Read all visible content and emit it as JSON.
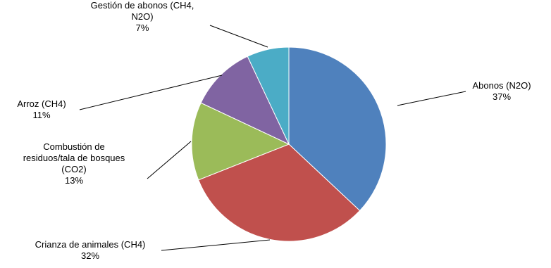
{
  "chart_data": {
    "type": "pie",
    "title": "",
    "slices": [
      {
        "label": "Abonos (N2O)",
        "label_lines": [
          "Abonos (N2O)"
        ],
        "value": 37,
        "value_label": "37%",
        "color": "#4F81BD"
      },
      {
        "label": "Crianza de animales (CH4)",
        "label_lines": [
          "Crianza de animales (CH4)"
        ],
        "value": 32,
        "value_label": "32%",
        "color": "#C0504D"
      },
      {
        "label": "Combustión de residuos/tala de bosques (CO2)",
        "label_lines": [
          "Combustión de",
          "residuos/tala de bosques",
          "(CO2)"
        ],
        "value": 13,
        "value_label": "13%",
        "color": "#9BBB59"
      },
      {
        "label": "Arroz (CH4)",
        "label_lines": [
          "Arroz (CH4)"
        ],
        "value": 11,
        "value_label": "11%",
        "color": "#8064A2"
      },
      {
        "label": "Gestión de abonos (CH4, N2O)",
        "label_lines": [
          "Gestión de abonos (CH4,",
          "N2O)"
        ],
        "value": 7,
        "value_label": "7%",
        "color": "#4BACC6"
      }
    ],
    "legend": "none",
    "start_angle_deg": 0,
    "direction": "clockwise",
    "data_labels": "outside-with-leader-lines"
  }
}
